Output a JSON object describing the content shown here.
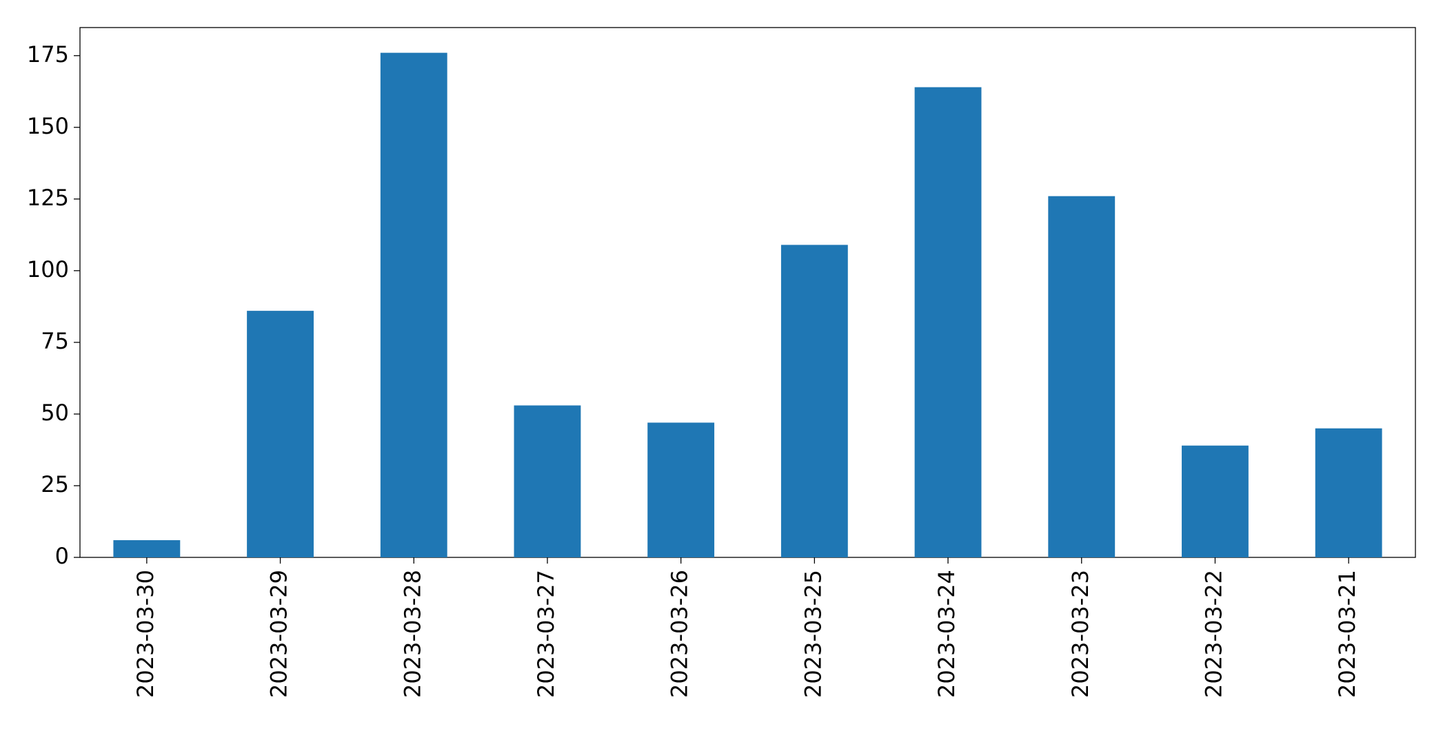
{
  "chart_data": {
    "type": "bar",
    "categories": [
      "2023-03-30",
      "2023-03-29",
      "2023-03-28",
      "2023-03-27",
      "2023-03-26",
      "2023-03-25",
      "2023-03-24",
      "2023-03-23",
      "2023-03-22",
      "2023-03-21"
    ],
    "values": [
      6,
      86,
      176,
      53,
      47,
      109,
      164,
      126,
      39,
      45
    ],
    "color": "#1f77b4",
    "ylim": [
      0,
      184.8
    ],
    "yticks": [
      0,
      25,
      50,
      75,
      100,
      125,
      150,
      175
    ],
    "grid": false
  }
}
